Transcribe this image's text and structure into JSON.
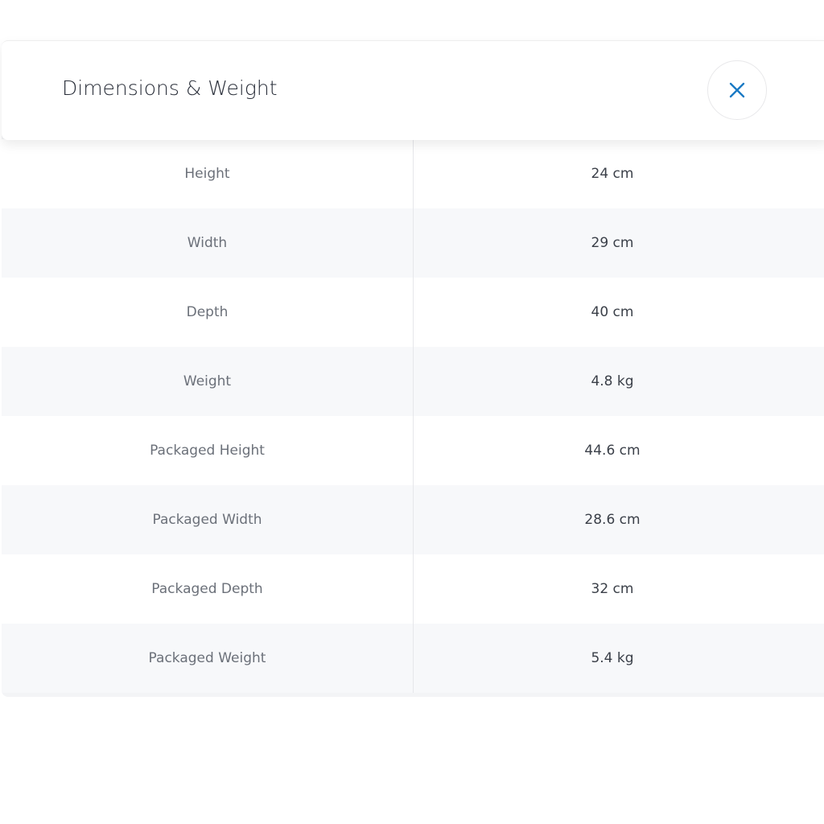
{
  "modal": {
    "title": "Dimensions & Weight",
    "close_icon": "close-x-icon",
    "accent_color": "#1a7ac4"
  },
  "rows": [
    {
      "label": "Height",
      "value": "24 cm"
    },
    {
      "label": "Width",
      "value": "29 cm"
    },
    {
      "label": "Depth",
      "value": "40 cm"
    },
    {
      "label": "Weight",
      "value": "4.8 kg"
    },
    {
      "label": "Packaged Height",
      "value": "44.6 cm"
    },
    {
      "label": "Packaged Width",
      "value": "28.6 cm"
    },
    {
      "label": "Packaged Depth",
      "value": "32 cm"
    },
    {
      "label": "Packaged Weight",
      "value": "5.4 kg"
    }
  ]
}
